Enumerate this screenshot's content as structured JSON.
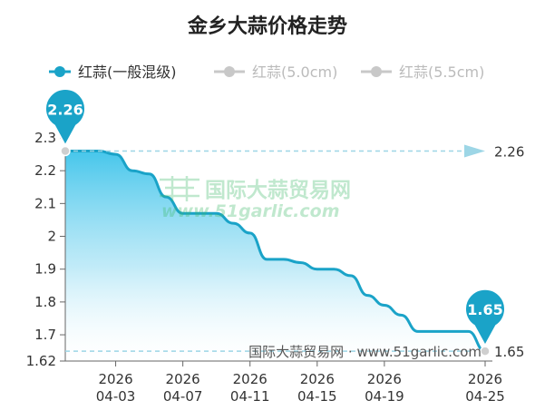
{
  "chart_data": {
    "type": "area",
    "title": "金乡大蒜价格走势",
    "legend": [
      {
        "label": "红蒜(一般混级)",
        "active": true,
        "color": "#1aa3c8"
      },
      {
        "label": "红蒜(5.0cm)",
        "active": false,
        "color": "#c8c8c8"
      },
      {
        "label": "红蒜(5.5cm)",
        "active": false,
        "color": "#c8c8c8"
      }
    ],
    "legend_placement": "top-left",
    "x_tick_labels": [
      {
        "date": "2026-04-03",
        "year": "2026",
        "md": "04-03"
      },
      {
        "date": "2026-04-07",
        "year": "2026",
        "md": "04-07"
      },
      {
        "date": "2026-04-11",
        "year": "2026",
        "md": "04-11"
      },
      {
        "date": "2026-04-15",
        "year": "2026",
        "md": "04-15"
      },
      {
        "date": "2026-04-19",
        "year": "2026",
        "md": "04-19"
      },
      {
        "date": "2026-04-25",
        "year": "2026",
        "md": "04-25"
      }
    ],
    "xlim": [
      "2026-03-31",
      "2026-04-25"
    ],
    "y_ticks": [
      "2.3",
      "2.2",
      "2.1",
      "2",
      "1.9",
      "1.8",
      "1.7",
      "1.62"
    ],
    "ylim": [
      1.62,
      2.3
    ],
    "series": [
      {
        "name": "红蒜(一般混级)",
        "color": "#1aa3c8",
        "x": [
          "2026-03-31",
          "2026-04-01",
          "2026-04-02",
          "2026-04-03",
          "2026-04-04",
          "2026-04-05",
          "2026-04-06",
          "2026-04-07",
          "2026-04-08",
          "2026-04-09",
          "2026-04-10",
          "2026-04-11",
          "2026-04-12",
          "2026-04-13",
          "2026-04-14",
          "2026-04-15",
          "2026-04-16",
          "2026-04-17",
          "2026-04-18",
          "2026-04-19",
          "2026-04-20",
          "2026-04-21",
          "2026-04-22",
          "2026-04-23",
          "2026-04-24",
          "2026-04-25"
        ],
        "values": [
          2.26,
          2.26,
          2.26,
          2.25,
          2.2,
          2.19,
          2.12,
          2.07,
          2.07,
          2.07,
          2.04,
          2.01,
          1.93,
          1.93,
          1.92,
          1.9,
          1.9,
          1.88,
          1.82,
          1.79,
          1.76,
          1.71,
          1.71,
          1.71,
          1.71,
          1.65
        ]
      }
    ],
    "max_marker": {
      "date": "2026-03-31",
      "value": 2.26,
      "label": "2.26"
    },
    "min_marker": {
      "date": "2026-04-25",
      "value": 1.65,
      "label": "1.65"
    },
    "max_line_label": "2.26",
    "min_line_label": "1.65",
    "grid": false
  },
  "watermark": {
    "brand": "国际大蒜贸易网",
    "url": "www.51garlic.com",
    "footer": "国际大蒜贸易网 · www.51garlic.com"
  }
}
